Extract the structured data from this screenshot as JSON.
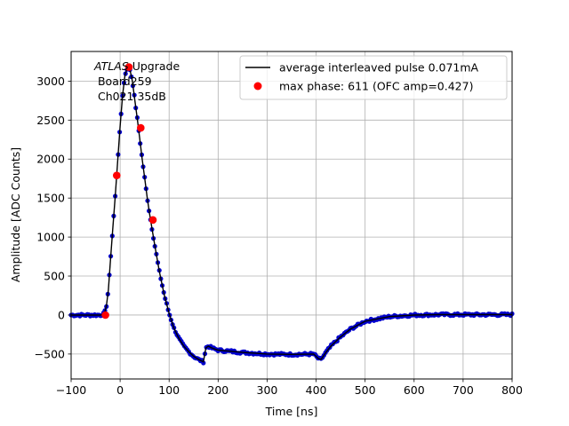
{
  "chart_data": {
    "type": "scatter",
    "title": "",
    "xlabel": "Time [ns]",
    "ylabel": "Amplitude [ADC Counts]",
    "xlim": [
      -100,
      800
    ],
    "ylim": [
      -820,
      3380
    ],
    "grid": true,
    "x_ticks": [
      -100,
      0,
      100,
      200,
      300,
      400,
      500,
      600,
      700,
      800
    ],
    "x_tick_labels": [
      "−100",
      "0",
      "100",
      "200",
      "300",
      "400",
      "500",
      "600",
      "700",
      "800"
    ],
    "y_ticks": [
      -500,
      0,
      500,
      1000,
      1500,
      2000,
      2500,
      3000
    ],
    "y_tick_labels": [
      "−500",
      "0",
      "500",
      "1000",
      "1500",
      "2000",
      "2500",
      "3000"
    ],
    "annotation": {
      "italic": "ATLAS",
      "line1_rest": " Upgrade",
      "line2": " Board259",
      "line3": " Ch021 35dB"
    },
    "legend": {
      "placement": "top-right",
      "entries": [
        {
          "label": "average interleaved pulse 0.071mA",
          "marker": "line",
          "color": "#000000"
        },
        {
          "label": "max phase: 611 (OFC amp=0.427)",
          "marker": "dot",
          "color": "#ff0000"
        }
      ]
    },
    "series": [
      {
        "marker": "line",
        "color": "#000000",
        "x": [
          -100,
          -40,
          -32,
          -28,
          -24,
          -20,
          -15,
          -10,
          -5,
          0,
          5,
          10,
          15,
          20,
          25,
          30,
          35,
          40,
          45,
          50,
          55,
          60,
          70,
          80,
          90,
          100,
          110,
          120,
          130,
          140,
          150,
          160,
          170,
          175,
          180,
          190,
          200,
          250,
          300,
          350,
          395,
          405,
          410,
          420,
          430,
          450,
          470,
          500,
          550,
          600,
          650,
          700,
          750,
          800
        ],
        "y": [
          0,
          0,
          20,
          120,
          320,
          680,
          1100,
          1520,
          1980,
          2420,
          2820,
          3080,
          3180,
          3150,
          3000,
          2760,
          2520,
          2260,
          2000,
          1760,
          1520,
          1300,
          920,
          560,
          260,
          20,
          -170,
          -300,
          -400,
          -470,
          -530,
          -570,
          -600,
          -420,
          -400,
          -430,
          -450,
          -480,
          -500,
          -505,
          -500,
          -560,
          -570,
          -480,
          -400,
          -280,
          -180,
          -80,
          -20,
          0,
          5,
          5,
          5,
          5
        ]
      },
      {
        "marker": "dot",
        "color": "#0000cd",
        "note": "dense sampled points overlaying the pulse"
      },
      {
        "marker": "dot",
        "color": "#ff0000",
        "x": [
          -30,
          -7,
          18,
          42,
          67
        ],
        "y": [
          0,
          1790,
          3180,
          2400,
          1220
        ]
      }
    ]
  }
}
